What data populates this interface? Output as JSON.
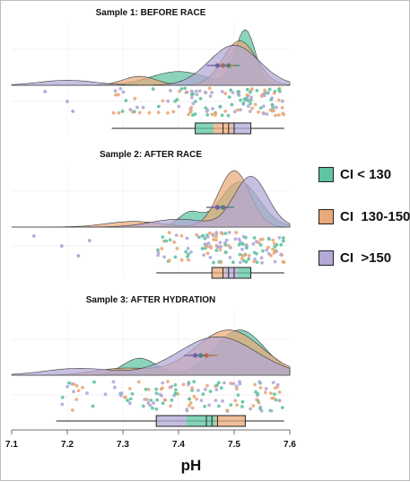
{
  "chart_data": {
    "type": "raincloud",
    "xlabel": "pH",
    "xlim": [
      7.1,
      7.6
    ],
    "x_ticks": [
      "7.1",
      "7.2",
      "7.3",
      "7.4",
      "7.5",
      "7.6"
    ],
    "series_colors": {
      "CI < 130": "#5ec4a2",
      "CI  130-150": "#e9a97a",
      "CI  >150": "#b3a8d6"
    },
    "legend": {
      "position": "right",
      "items": [
        {
          "label": "CI < 130",
          "color": "#5ec4a2"
        },
        {
          "label": "CI  130-150",
          "color": "#e9a97a"
        },
        {
          "label": "CI  >150",
          "color": "#b3a8d6"
        }
      ]
    },
    "panels": [
      {
        "title": "Sample 1: BEFORE RACE",
        "density_peaks": {
          "CI < 130": 7.52,
          "CI  130-150": 7.51,
          "CI  >150": 7.5
        },
        "means": {
          "CI < 130": 7.49,
          "CI  130-150": 7.48,
          "CI  >150": 7.47
        },
        "box": {
          "min": 7.28,
          "q1": 7.43,
          "median": 7.49,
          "q3": 7.53,
          "max": 7.59
        },
        "outliers": [
          7.16,
          7.2,
          7.21
        ]
      },
      {
        "title": "Sample 2: AFTER RACE",
        "density_peaks": {
          "CI < 130": 7.51,
          "CI  130-150": 7.5,
          "CI  >150": 7.53
        },
        "means": {
          "CI < 130": 7.48,
          "CI  130-150": 7.47,
          "CI  >150": 7.47
        },
        "box": {
          "min": 7.36,
          "q1": 7.46,
          "median": 7.49,
          "q3": 7.53,
          "max": 7.59
        },
        "outliers": [
          7.14,
          7.19,
          7.22,
          7.24
        ]
      },
      {
        "title": "Sample 3: AFTER HYDRATION",
        "density_peaks": {
          "CI < 130": 7.51,
          "CI  130-150": 7.49,
          "CI  >150": 7.47
        },
        "means": {
          "CI < 130": 7.44,
          "CI  130-150": 7.45,
          "CI  >150": 7.43
        },
        "box": {
          "min": 7.18,
          "q1": 7.36,
          "median": 7.46,
          "q3": 7.52,
          "max": 7.59
        },
        "outliers": []
      }
    ]
  }
}
